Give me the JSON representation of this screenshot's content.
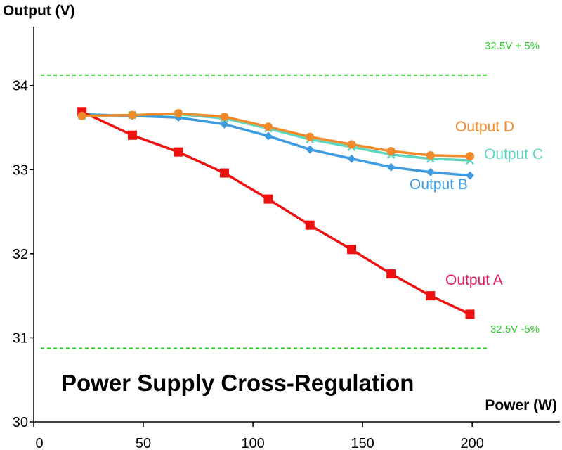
{
  "chart_data": {
    "type": "line",
    "title": "Power Supply Cross-Regulation",
    "xlabel": "Power (W)",
    "ylabel": "Output (V)",
    "xlim": [
      0,
      240
    ],
    "ylim": [
      30,
      34.7
    ],
    "xticks": [
      "0",
      "50",
      "100",
      "150",
      "200"
    ],
    "yticks": [
      "30",
      "31",
      "32",
      "33",
      "34"
    ],
    "grid": false,
    "x": [
      22,
      45,
      66,
      87,
      107,
      126,
      145,
      163,
      181,
      199
    ],
    "series": [
      {
        "name": "Output A",
        "color": "#ee1111",
        "marker": "square",
        "values": [
          33.69,
          33.41,
          33.21,
          32.96,
          32.65,
          32.34,
          32.05,
          31.76,
          31.5,
          31.28
        ]
      },
      {
        "name": "Output B",
        "color": "#3d9be0",
        "marker": "diamond",
        "values": [
          33.66,
          33.64,
          33.62,
          33.54,
          33.4,
          33.24,
          33.13,
          33.03,
          32.97,
          32.93
        ]
      },
      {
        "name": "Output C",
        "color": "#5fd6c0",
        "marker": "x",
        "values": [
          33.64,
          33.65,
          33.66,
          33.61,
          33.49,
          33.36,
          33.27,
          33.18,
          33.13,
          33.11
        ]
      },
      {
        "name": "Output D",
        "color": "#f08a2a",
        "marker": "circle",
        "values": [
          33.64,
          33.65,
          33.67,
          33.63,
          33.51,
          33.39,
          33.3,
          33.22,
          33.17,
          33.16
        ]
      }
    ],
    "reference_lines": [
      {
        "label": "32.5V + 5%",
        "value": 34.125,
        "color": "#2ecc2e",
        "style": "dashed"
      },
      {
        "label": "32.5V -5%",
        "value": 30.875,
        "color": "#2ecc2e",
        "style": "dashed"
      }
    ]
  }
}
